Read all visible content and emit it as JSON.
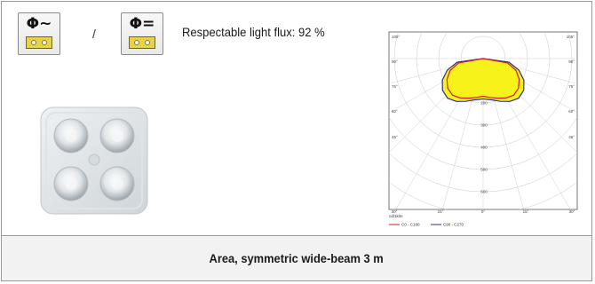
{
  "badges": [
    {
      "symbol": "Φ~",
      "icon": "ac-power-icon"
    },
    {
      "symbol": "Φ=",
      "icon": "dc-power-icon"
    }
  ],
  "separator": "/",
  "flux_text": "Respectable light flux: 92 %",
  "footer_title": "Area, symmetric wide-beam 3 m",
  "colors": {
    "curve_fill": "#f7f21a",
    "c0_c180": "#d21c24",
    "c90_c270": "#2b2e9c"
  },
  "chart_data": {
    "type": "polar",
    "angle_labels": {
      "left": [
        "105°",
        "90°",
        "75°",
        "60°",
        "45°",
        "30°",
        "15°"
      ],
      "right": [
        "105°",
        "90°",
        "75°",
        "60°",
        "45°",
        "30°",
        "15°"
      ],
      "bottom": "0°"
    },
    "radial_ticks": [
      200,
      300,
      400,
      500,
      600
    ],
    "unit_label": "cd/1klm",
    "series": [
      {
        "name": "C0 - C180",
        "color": "#d21c24",
        "points": [
          [
            -80,
            112
          ],
          [
            -70,
            158
          ],
          [
            -60,
            188
          ],
          [
            -50,
            208
          ],
          [
            -40,
            215
          ],
          [
            -30,
            205
          ],
          [
            -20,
            190
          ],
          [
            -10,
            178
          ],
          [
            0,
            170
          ],
          [
            10,
            178
          ],
          [
            20,
            190
          ],
          [
            30,
            205
          ],
          [
            40,
            215
          ],
          [
            50,
            208
          ],
          [
            60,
            188
          ],
          [
            70,
            158
          ],
          [
            80,
            112
          ]
        ]
      },
      {
        "name": "C90 - C270",
        "color": "#2b2e9c",
        "points": [
          [
            -82,
            118
          ],
          [
            -72,
            170
          ],
          [
            -62,
            208
          ],
          [
            -52,
            232
          ],
          [
            -42,
            240
          ],
          [
            -32,
            228
          ],
          [
            -22,
            208
          ],
          [
            -12,
            190
          ],
          [
            0,
            182
          ],
          [
            12,
            190
          ],
          [
            22,
            208
          ],
          [
            32,
            228
          ],
          [
            42,
            240
          ],
          [
            52,
            232
          ],
          [
            62,
            208
          ],
          [
            72,
            170
          ],
          [
            82,
            118
          ]
        ]
      }
    ]
  }
}
